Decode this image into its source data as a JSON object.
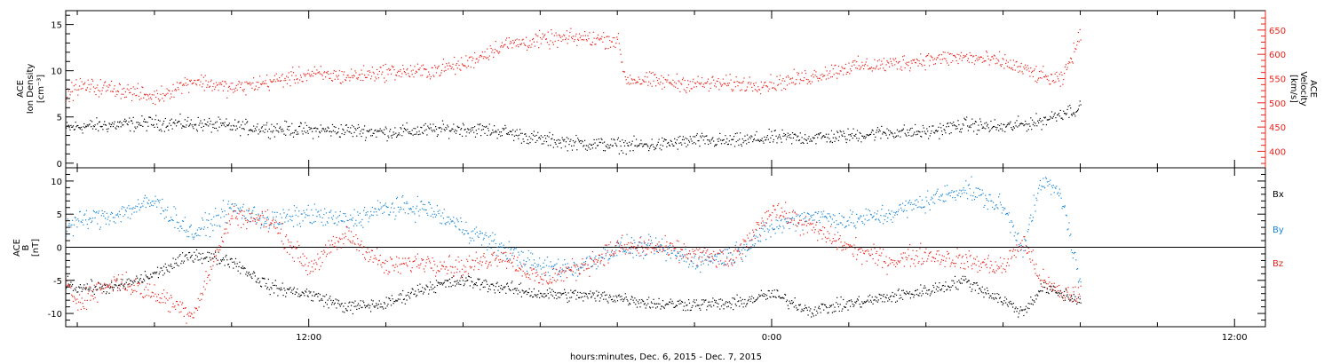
{
  "footer": {
    "xlabel": "hours:minutes, Dec.  6, 2015 - Dec.  7, 2015"
  },
  "colors": {
    "black": "#000000",
    "red": "#e8241c",
    "blue": "#1a86d6"
  },
  "chart_data": [
    {
      "id": "top-panel",
      "type": "scatter",
      "x_unit": "hours since Dec 6 2015 00:00",
      "xlim": [
        5.7,
        36.8
      ],
      "x_ticks": [
        "12:00",
        "0:00",
        "12:00"
      ],
      "left_axis": {
        "label_lines": [
          "ACE",
          "Ion Density",
          "[cm⁻³]"
        ],
        "ylim": [
          -0.5,
          16.5
        ],
        "ticks": [
          "0",
          "5",
          "10",
          "15"
        ]
      },
      "right_axis": {
        "label_lines": [
          "ACE",
          "Velocity",
          "[km/s]"
        ],
        "ylim": [
          366,
          690
        ],
        "ticks": [
          "400",
          "450",
          "500",
          "550",
          "600",
          "650"
        ]
      },
      "series": [
        {
          "axis": "left",
          "color": "black",
          "x": [
            5.7,
            6,
            7,
            8,
            9,
            10,
            11,
            12,
            13,
            14,
            15,
            16,
            17,
            18,
            19,
            20,
            21,
            22,
            23,
            24,
            25,
            26,
            27,
            28,
            29,
            30,
            31,
            31.5,
            32
          ],
          "y": [
            3.8,
            4,
            4.2,
            4.4,
            4.3,
            4,
            3.8,
            3.6,
            3.6,
            3.4,
            3.6,
            3.8,
            3.5,
            2.6,
            2.2,
            2,
            2,
            2.5,
            2.4,
            2.8,
            2.8,
            3,
            3.4,
            3.4,
            4.2,
            3.9,
            4.6,
            5.5,
            6
          ]
        },
        {
          "axis": "right",
          "color": "red",
          "x": [
            5.7,
            6,
            7,
            8,
            9,
            10,
            11,
            12,
            13,
            14,
            15,
            16,
            17,
            18,
            19,
            20,
            20.2,
            21,
            22,
            23,
            24,
            25,
            26,
            27,
            28,
            29,
            30,
            31,
            31.5,
            32
          ],
          "y": [
            515,
            535,
            530,
            512,
            548,
            530,
            545,
            560,
            555,
            565,
            565,
            580,
            620,
            630,
            635,
            630,
            550,
            545,
            540,
            540,
            540,
            555,
            575,
            580,
            590,
            595,
            585,
            555,
            545,
            640
          ]
        }
      ]
    },
    {
      "id": "bottom-panel",
      "type": "scatter",
      "x_unit": "hours since Dec 6 2015 00:00",
      "xlim": [
        5.7,
        36.8
      ],
      "x_ticks": [
        "12:00",
        "0:00",
        "12:00"
      ],
      "y_axis": {
        "label_lines": [
          "ACE",
          "B",
          "[nT]"
        ],
        "ylim": [
          -12,
          12
        ],
        "ticks": [
          "-10",
          "-5",
          "0",
          "5",
          "10"
        ]
      },
      "legend": [
        "Bx",
        "By",
        "Bz"
      ],
      "series": [
        {
          "name": "Bx",
          "color": "black",
          "x": [
            5.7,
            6,
            7,
            8,
            9,
            10,
            11,
            12,
            13,
            14,
            15,
            16,
            17,
            18,
            19,
            20,
            21,
            22,
            23,
            24,
            25,
            26,
            27,
            28,
            29,
            30,
            30.5,
            31,
            31.5,
            32
          ],
          "y": [
            -5,
            -6,
            -6,
            -4,
            -1,
            -2,
            -6,
            -7,
            -9,
            -8.5,
            -6,
            -5,
            -6,
            -7,
            -7.2,
            -7.5,
            -8.5,
            -8.5,
            -8.5,
            -7,
            -9.5,
            -8.5,
            -7.5,
            -6.5,
            -5,
            -8,
            -9.8,
            -6,
            -7,
            -8
          ]
        },
        {
          "name": "By",
          "color": "blue",
          "x": [
            5.7,
            6,
            7,
            8,
            9,
            10,
            11,
            12,
            13,
            14,
            15,
            16,
            17,
            18,
            19,
            20,
            21,
            22,
            23,
            24,
            25,
            26,
            27,
            28,
            29,
            30,
            30.5,
            31,
            31.5,
            32
          ],
          "y": [
            3,
            4,
            5,
            7,
            2,
            6,
            4,
            5,
            4,
            6,
            6,
            3,
            0,
            -3,
            -3,
            0,
            0,
            -2,
            -1,
            3,
            5,
            4,
            5,
            7,
            9,
            6,
            0,
            10,
            8,
            -6
          ]
        },
        {
          "name": "Bz",
          "color": "red",
          "x": [
            5.7,
            6,
            7,
            8,
            9,
            10,
            11,
            12,
            13,
            14,
            15,
            16,
            17,
            18,
            19,
            20,
            21,
            22,
            23,
            24,
            25,
            26,
            27,
            28,
            29,
            30,
            30.5,
            31,
            31.5,
            32
          ],
          "y": [
            -6,
            -8,
            -5,
            -7,
            -10,
            5,
            4,
            -3,
            2,
            -3,
            -2,
            -3,
            -1,
            -5,
            -3,
            0,
            0,
            -1,
            -2,
            6,
            3,
            0,
            -2,
            -1,
            -2,
            -3,
            1,
            -5,
            -7,
            -7
          ]
        }
      ]
    }
  ]
}
